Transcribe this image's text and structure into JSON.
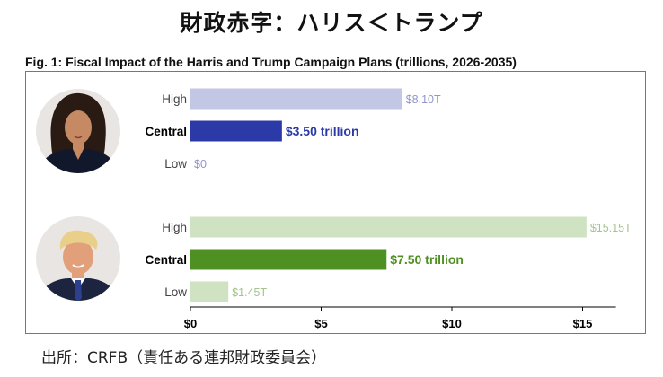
{
  "headline": "財政赤字：ハリス＜トランプ",
  "figure_title": "Fig. 1: Fiscal Impact of the Harris and Trump Campaign Plans (trillions, 2026-2035)",
  "source": "出所：CRFB（責任ある連邦財政委員会）",
  "colors": {
    "harris_light": "#c3c7e6",
    "harris_dark": "#2b3aa6",
    "trump_light": "#cfe3c2",
    "trump_dark": "#4f9022",
    "axis": "#000000"
  },
  "chart_data": {
    "type": "bar",
    "orientation": "horizontal",
    "title": "Fig. 1: Fiscal Impact of the Harris and Trump Campaign Plans (trillions, 2026-2035)",
    "xlabel": "",
    "ylabel": "",
    "xlim": [
      0,
      16
    ],
    "x_ticks": [
      "$0",
      "$5",
      "$10",
      "$15"
    ],
    "x_tick_values": [
      0,
      5,
      10,
      15
    ],
    "grid": false,
    "groups": [
      {
        "name": "Harris",
        "bars": [
          {
            "category": "High",
            "value": 8.1,
            "label": "$8.10T",
            "emphasis": false
          },
          {
            "category": "Central",
            "value": 3.5,
            "label": "$3.50 trillion",
            "emphasis": true
          },
          {
            "category": "Low",
            "value": 0,
            "label": "$0",
            "emphasis": false
          }
        ]
      },
      {
        "name": "Trump",
        "bars": [
          {
            "category": "High",
            "value": 15.15,
            "label": "$15.15T",
            "emphasis": false
          },
          {
            "category": "Central",
            "value": 7.5,
            "label": "$7.50 trillion",
            "emphasis": true
          },
          {
            "category": "Low",
            "value": 1.45,
            "label": "$1.45T",
            "emphasis": false
          }
        ]
      }
    ]
  }
}
